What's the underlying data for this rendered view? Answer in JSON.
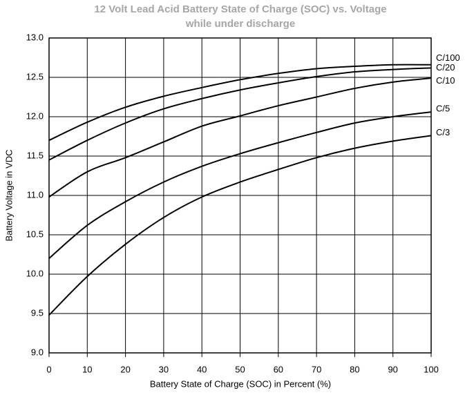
{
  "chart_data": {
    "type": "line",
    "title": "12 Volt Lead Acid Battery State of Charge (SOC) vs. Voltage",
    "subtitle": "while under discharge",
    "x_label": "Battery State of Charge (SOC) in Percent (%)",
    "y_label": "Battery Voltage in VDC",
    "x": [
      0,
      10,
      20,
      30,
      40,
      50,
      60,
      70,
      80,
      90,
      100
    ],
    "series": [
      {
        "name": "C/100",
        "color": "#000000",
        "values": [
          11.7,
          11.93,
          12.12,
          12.26,
          12.37,
          12.47,
          12.55,
          12.61,
          12.64,
          12.66,
          12.66
        ]
      },
      {
        "name": "C/20",
        "color": "#000000",
        "values": [
          11.45,
          11.7,
          11.92,
          12.1,
          12.23,
          12.34,
          12.43,
          12.51,
          12.57,
          12.6,
          12.62
        ]
      },
      {
        "name": "C/10",
        "color": "#000000",
        "values": [
          10.98,
          11.3,
          11.48,
          11.68,
          11.88,
          12.01,
          12.14,
          12.25,
          12.36,
          12.44,
          12.49
        ]
      },
      {
        "name": "C/5",
        "color": "#000000",
        "values": [
          10.2,
          10.62,
          10.92,
          11.17,
          11.37,
          11.53,
          11.67,
          11.8,
          11.92,
          12.0,
          12.06
        ]
      },
      {
        "name": "C/3",
        "color": "#000000",
        "values": [
          9.48,
          9.97,
          10.38,
          10.72,
          10.98,
          11.17,
          11.33,
          11.48,
          11.6,
          11.69,
          11.76
        ]
      }
    ],
    "xlim": [
      0,
      100
    ],
    "xticks": [
      0,
      10,
      20,
      30,
      40,
      50,
      60,
      70,
      80,
      90,
      100
    ],
    "ylim": [
      9,
      13
    ],
    "yticks": [
      {
        "value": 9,
        "label": "9.0"
      },
      9.5,
      {
        "value": 10,
        "label": "10.0"
      },
      10.5,
      {
        "value": 11,
        "label": "11.0"
      },
      11.5,
      {
        "value": 12,
        "label": "12.0"
      },
      12.5,
      {
        "value": 13,
        "label": "13.0"
      }
    ],
    "grid": true
  }
}
